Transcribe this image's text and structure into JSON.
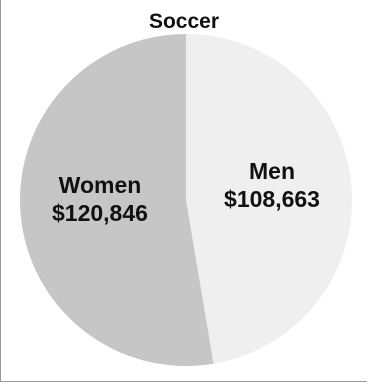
{
  "chart_data": {
    "type": "pie",
    "title": "Soccer",
    "slices": [
      {
        "name": "Men",
        "label": "Men",
        "value_label": "$108,663",
        "value": 108663,
        "color": "#efefef"
      },
      {
        "name": "Women",
        "label": "Women",
        "value_label": "$120,846",
        "value": 120846,
        "color": "#c6c6c6"
      }
    ],
    "legend": "none"
  }
}
